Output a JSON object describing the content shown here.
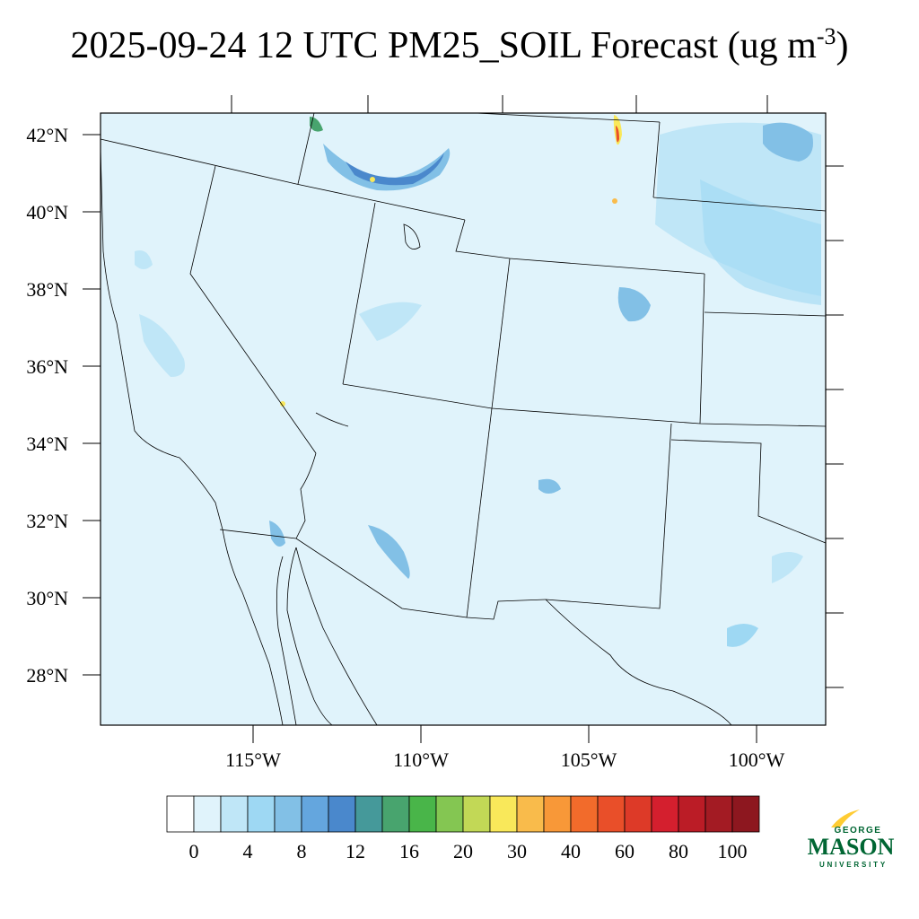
{
  "title": {
    "main": "2025-09-24 12 UTC PM25_SOIL Forecast (ug m",
    "superscript": "-3",
    "close": ")"
  },
  "map": {
    "region": "Southwestern United States and northwestern Mexico",
    "background_color": "#e0f3fb",
    "lat_ticks": [
      {
        "value": 42,
        "label": "42°N"
      },
      {
        "value": 40,
        "label": "40°N"
      },
      {
        "value": 38,
        "label": "38°N"
      },
      {
        "value": 36,
        "label": "36°N"
      },
      {
        "value": 34,
        "label": "34°N"
      },
      {
        "value": 32,
        "label": "32°N"
      },
      {
        "value": 30,
        "label": "30°N"
      },
      {
        "value": 28,
        "label": "28°N"
      }
    ],
    "lon_ticks": [
      {
        "value": -115,
        "label": "115°W"
      },
      {
        "value": -110,
        "label": "110°W"
      },
      {
        "value": -105,
        "label": "105°W"
      },
      {
        "value": -100,
        "label": "100°W"
      }
    ]
  },
  "colorbar": {
    "colors": [
      "#ffffff",
      "#e0f3fb",
      "#bfe6f7",
      "#9ed8f3",
      "#82c0e6",
      "#64a6de",
      "#4a88cc",
      "#45999a",
      "#48a46e",
      "#49b549",
      "#84c652",
      "#c2d856",
      "#f9e85a",
      "#f9bb4b",
      "#f89838",
      "#f26b2b",
      "#e94f29",
      "#dd3a28",
      "#d41f2e",
      "#bb1c26",
      "#a31b23",
      "#8d171f"
    ],
    "labels": [
      "0",
      "4",
      "8",
      "12",
      "16",
      "20",
      "30",
      "40",
      "60",
      "80",
      "100"
    ]
  },
  "logo": {
    "line1": "GEORGE",
    "line2": "MASON",
    "line3": "UNIVERSITY",
    "color": "#006633",
    "accent": "#ffcc33"
  }
}
